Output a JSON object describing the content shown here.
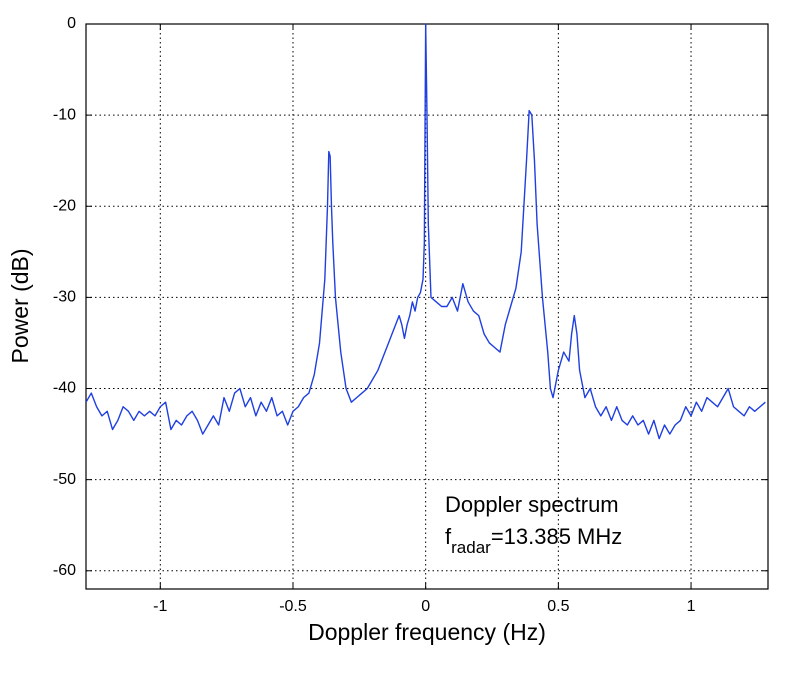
{
  "chart_data": {
    "type": "line",
    "xlabel": "Doppler frequency (Hz)",
    "ylabel": "Power (dB)",
    "annotation": {
      "text": "Doppler spectrum",
      "symbol": "f",
      "subscript": "radar",
      "value": "=13.385 MHz"
    },
    "color": "#1f3fe0",
    "grid": true,
    "xlim": [
      -1.28,
      1.29
    ],
    "ylim": [
      -62,
      0
    ],
    "xticks": [
      -1,
      -0.5,
      0,
      0.5,
      1
    ],
    "yticks": [
      0,
      -10,
      -20,
      -30,
      -40,
      -50,
      -60
    ],
    "x": [
      -1.28,
      -1.26,
      -1.24,
      -1.22,
      -1.2,
      -1.18,
      -1.16,
      -1.14,
      -1.12,
      -1.1,
      -1.08,
      -1.06,
      -1.04,
      -1.02,
      -1,
      -0.98,
      -0.96,
      -0.94,
      -0.92,
      -0.9,
      -0.88,
      -0.86,
      -0.84,
      -0.82,
      -0.8,
      -0.78,
      -0.76,
      -0.74,
      -0.72,
      -0.7,
      -0.68,
      -0.66,
      -0.64,
      -0.62,
      -0.6,
      -0.58,
      -0.56,
      -0.54,
      -0.52,
      -0.5,
      -0.48,
      -0.46,
      -0.44,
      -0.42,
      -0.4,
      -0.38,
      -0.37,
      -0.365,
      -0.36,
      -0.355,
      -0.35,
      -0.34,
      -0.32,
      -0.3,
      -0.28,
      -0.26,
      -0.24,
      -0.22,
      -0.2,
      -0.18,
      -0.16,
      -0.14,
      -0.12,
      -0.1,
      -0.09,
      -0.08,
      -0.07,
      -0.06,
      -0.05,
      -0.04,
      -0.03,
      -0.02,
      -0.01,
      -0.005,
      0,
      0.005,
      0.01,
      0.02,
      0.04,
      0.06,
      0.08,
      0.1,
      0.12,
      0.14,
      0.16,
      0.18,
      0.2,
      0.22,
      0.24,
      0.26,
      0.28,
      0.3,
      0.32,
      0.34,
      0.36,
      0.38,
      0.39,
      0.4,
      0.41,
      0.42,
      0.44,
      0.46,
      0.47,
      0.48,
      0.5,
      0.52,
      0.54,
      0.55,
      0.56,
      0.57,
      0.58,
      0.6,
      0.62,
      0.64,
      0.66,
      0.68,
      0.7,
      0.72,
      0.74,
      0.76,
      0.78,
      0.8,
      0.82,
      0.84,
      0.86,
      0.88,
      0.9,
      0.92,
      0.94,
      0.96,
      0.98,
      1,
      1.02,
      1.04,
      1.06,
      1.08,
      1.1,
      1.12,
      1.14,
      1.16,
      1.18,
      1.2,
      1.22,
      1.24,
      1.26,
      1.28
    ],
    "values": [
      -41.5,
      -40.5,
      -42,
      -43,
      -42.5,
      -44.5,
      -43.5,
      -42,
      -42.5,
      -43.5,
      -42.5,
      -43,
      -42.5,
      -43,
      -42,
      -41.5,
      -44.5,
      -43.5,
      -44,
      -43,
      -42.5,
      -43.5,
      -45,
      -44,
      -43,
      -44,
      -41,
      -42.5,
      -40.5,
      -40,
      -42,
      -41,
      -43,
      -41.5,
      -42.5,
      -41,
      -43,
      -42.5,
      -44,
      -42.5,
      -42,
      -41,
      -40.5,
      -38.5,
      -35,
      -28,
      -20,
      -14,
      -14.5,
      -20,
      -24,
      -30,
      -36,
      -40,
      -41.5,
      -41,
      -40.5,
      -40,
      -39,
      -38,
      -36.5,
      -35,
      -33.5,
      -32,
      -33,
      -34.5,
      -33,
      -32,
      -30.5,
      -31.5,
      -30,
      -29.5,
      -28,
      -24,
      0,
      -10,
      -22,
      -30,
      -30.5,
      -31,
      -31,
      -30,
      -31.5,
      -28.5,
      -30.5,
      -31.5,
      -32,
      -34,
      -35,
      -35.5,
      -36,
      -33,
      -31,
      -29,
      -25,
      -15,
      -9.5,
      -10,
      -15,
      -22,
      -30,
      -36,
      -40,
      -41,
      -38,
      -36,
      -37,
      -34,
      -32,
      -34,
      -38,
      -41,
      -40,
      -42,
      -43,
      -42,
      -43.5,
      -42,
      -43.5,
      -44,
      -43,
      -44,
      -43.5,
      -45,
      -43.5,
      -45.5,
      -44,
      -45,
      -44,
      -43.5,
      -42,
      -43,
      -41.5,
      -42.5,
      -41,
      -41.5,
      -42,
      -41,
      -40,
      -42,
      -42.5,
      -43,
      -42,
      -42.5,
      -42,
      -41.5
    ]
  }
}
